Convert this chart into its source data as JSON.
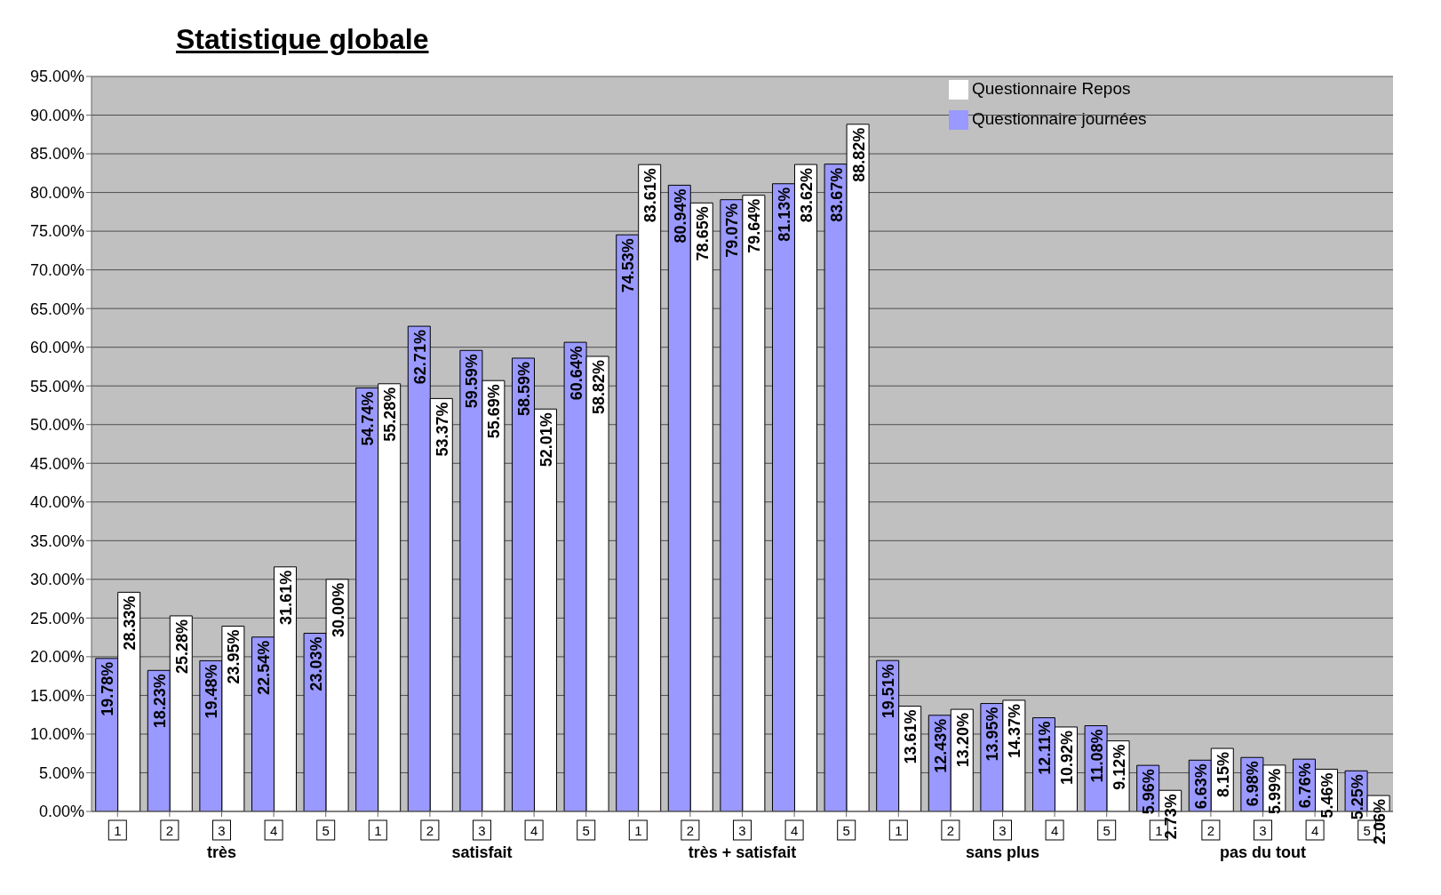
{
  "chart_data": {
    "type": "bar",
    "title": "Statistique globale",
    "categories": [
      "1",
      "2",
      "3",
      "4",
      "5",
      "1",
      "2",
      "3",
      "4",
      "5",
      "1",
      "2",
      "3",
      "4",
      "5",
      "1",
      "2",
      "3",
      "4",
      "5",
      "1",
      "2",
      "3",
      "4",
      "5"
    ],
    "annotations": [
      "très",
      "satisfait",
      "très + satisfait",
      "sans plus",
      "pas du tout"
    ],
    "series": [
      {
        "name": "Questionnaire journées",
        "color": "#9999ff",
        "values": [
          19.78,
          18.23,
          19.48,
          22.54,
          23.03,
          54.74,
          62.71,
          59.59,
          58.59,
          60.64,
          74.53,
          80.94,
          79.07,
          81.13,
          83.67,
          19.51,
          12.43,
          13.95,
          12.11,
          11.08,
          5.96,
          6.63,
          6.98,
          6.76,
          5.25
        ],
        "value_labels": [
          "19.78%",
          "18.23%",
          "19.48%",
          "22.54%",
          "23.03%",
          "54.74%",
          "62.71%",
          "59.59%",
          "58.59%",
          "60.64%",
          "74.53%",
          "80.94%",
          "79.07%",
          "81.13%",
          "83.67%",
          "19.51%",
          "12.43%",
          "13.95%",
          "12.11%",
          "11.08%",
          "5.96%",
          "6.63%",
          "6.98%",
          "6.76%",
          "5.25%"
        ]
      },
      {
        "name": "Questionnaire Repos",
        "color": "#ffffff",
        "values": [
          28.33,
          25.28,
          23.95,
          31.61,
          30.0,
          55.28,
          53.37,
          55.69,
          52.01,
          58.82,
          83.61,
          78.65,
          79.64,
          83.62,
          88.82,
          13.61,
          13.2,
          14.37,
          10.92,
          9.12,
          2.73,
          8.15,
          5.99,
          5.46,
          2.06
        ],
        "value_labels": [
          "28.33%",
          "25.28%",
          "23.95%",
          "31.61%",
          "30.00%",
          "55.28%",
          "53.37%",
          "55.69%",
          "52.01%",
          "58.82%",
          "83.61%",
          "78.65%",
          "79.64%",
          "83.62%",
          "88.82%",
          "13.61%",
          "13.20%",
          "14.37%",
          "10.92%",
          "9.12%",
          "2.73%",
          "8.15%",
          "5.99%",
          "5.46%",
          "2.06%"
        ]
      }
    ],
    "ylim": [
      0,
      95
    ],
    "yticks": [
      {
        "value": 0,
        "label": "0.00%"
      },
      {
        "value": 5,
        "label": "5.00%"
      },
      {
        "value": 10,
        "label": "10.00%"
      },
      {
        "value": 15,
        "label": "15.00%"
      },
      {
        "value": 20,
        "label": "20.00%"
      },
      {
        "value": 25,
        "label": "25.00%"
      },
      {
        "value": 30,
        "label": "30.00%"
      },
      {
        "value": 35,
        "label": "35.00%"
      },
      {
        "value": 40,
        "label": "40.00%"
      },
      {
        "value": 45,
        "label": "45.00%"
      },
      {
        "value": 50,
        "label": "50.00%"
      },
      {
        "value": 55,
        "label": "55.00%"
      },
      {
        "value": 60,
        "label": "60.00%"
      },
      {
        "value": 65,
        "label": "65.00%"
      },
      {
        "value": 70,
        "label": "70.00%"
      },
      {
        "value": 75,
        "label": "75.00%"
      },
      {
        "value": 80,
        "label": "80.00%"
      },
      {
        "value": 85,
        "label": "85.00%"
      },
      {
        "value": 90,
        "label": "90.00%"
      },
      {
        "value": 95,
        "label": "95.00%"
      }
    ],
    "grid": "y",
    "legend": "top right"
  }
}
